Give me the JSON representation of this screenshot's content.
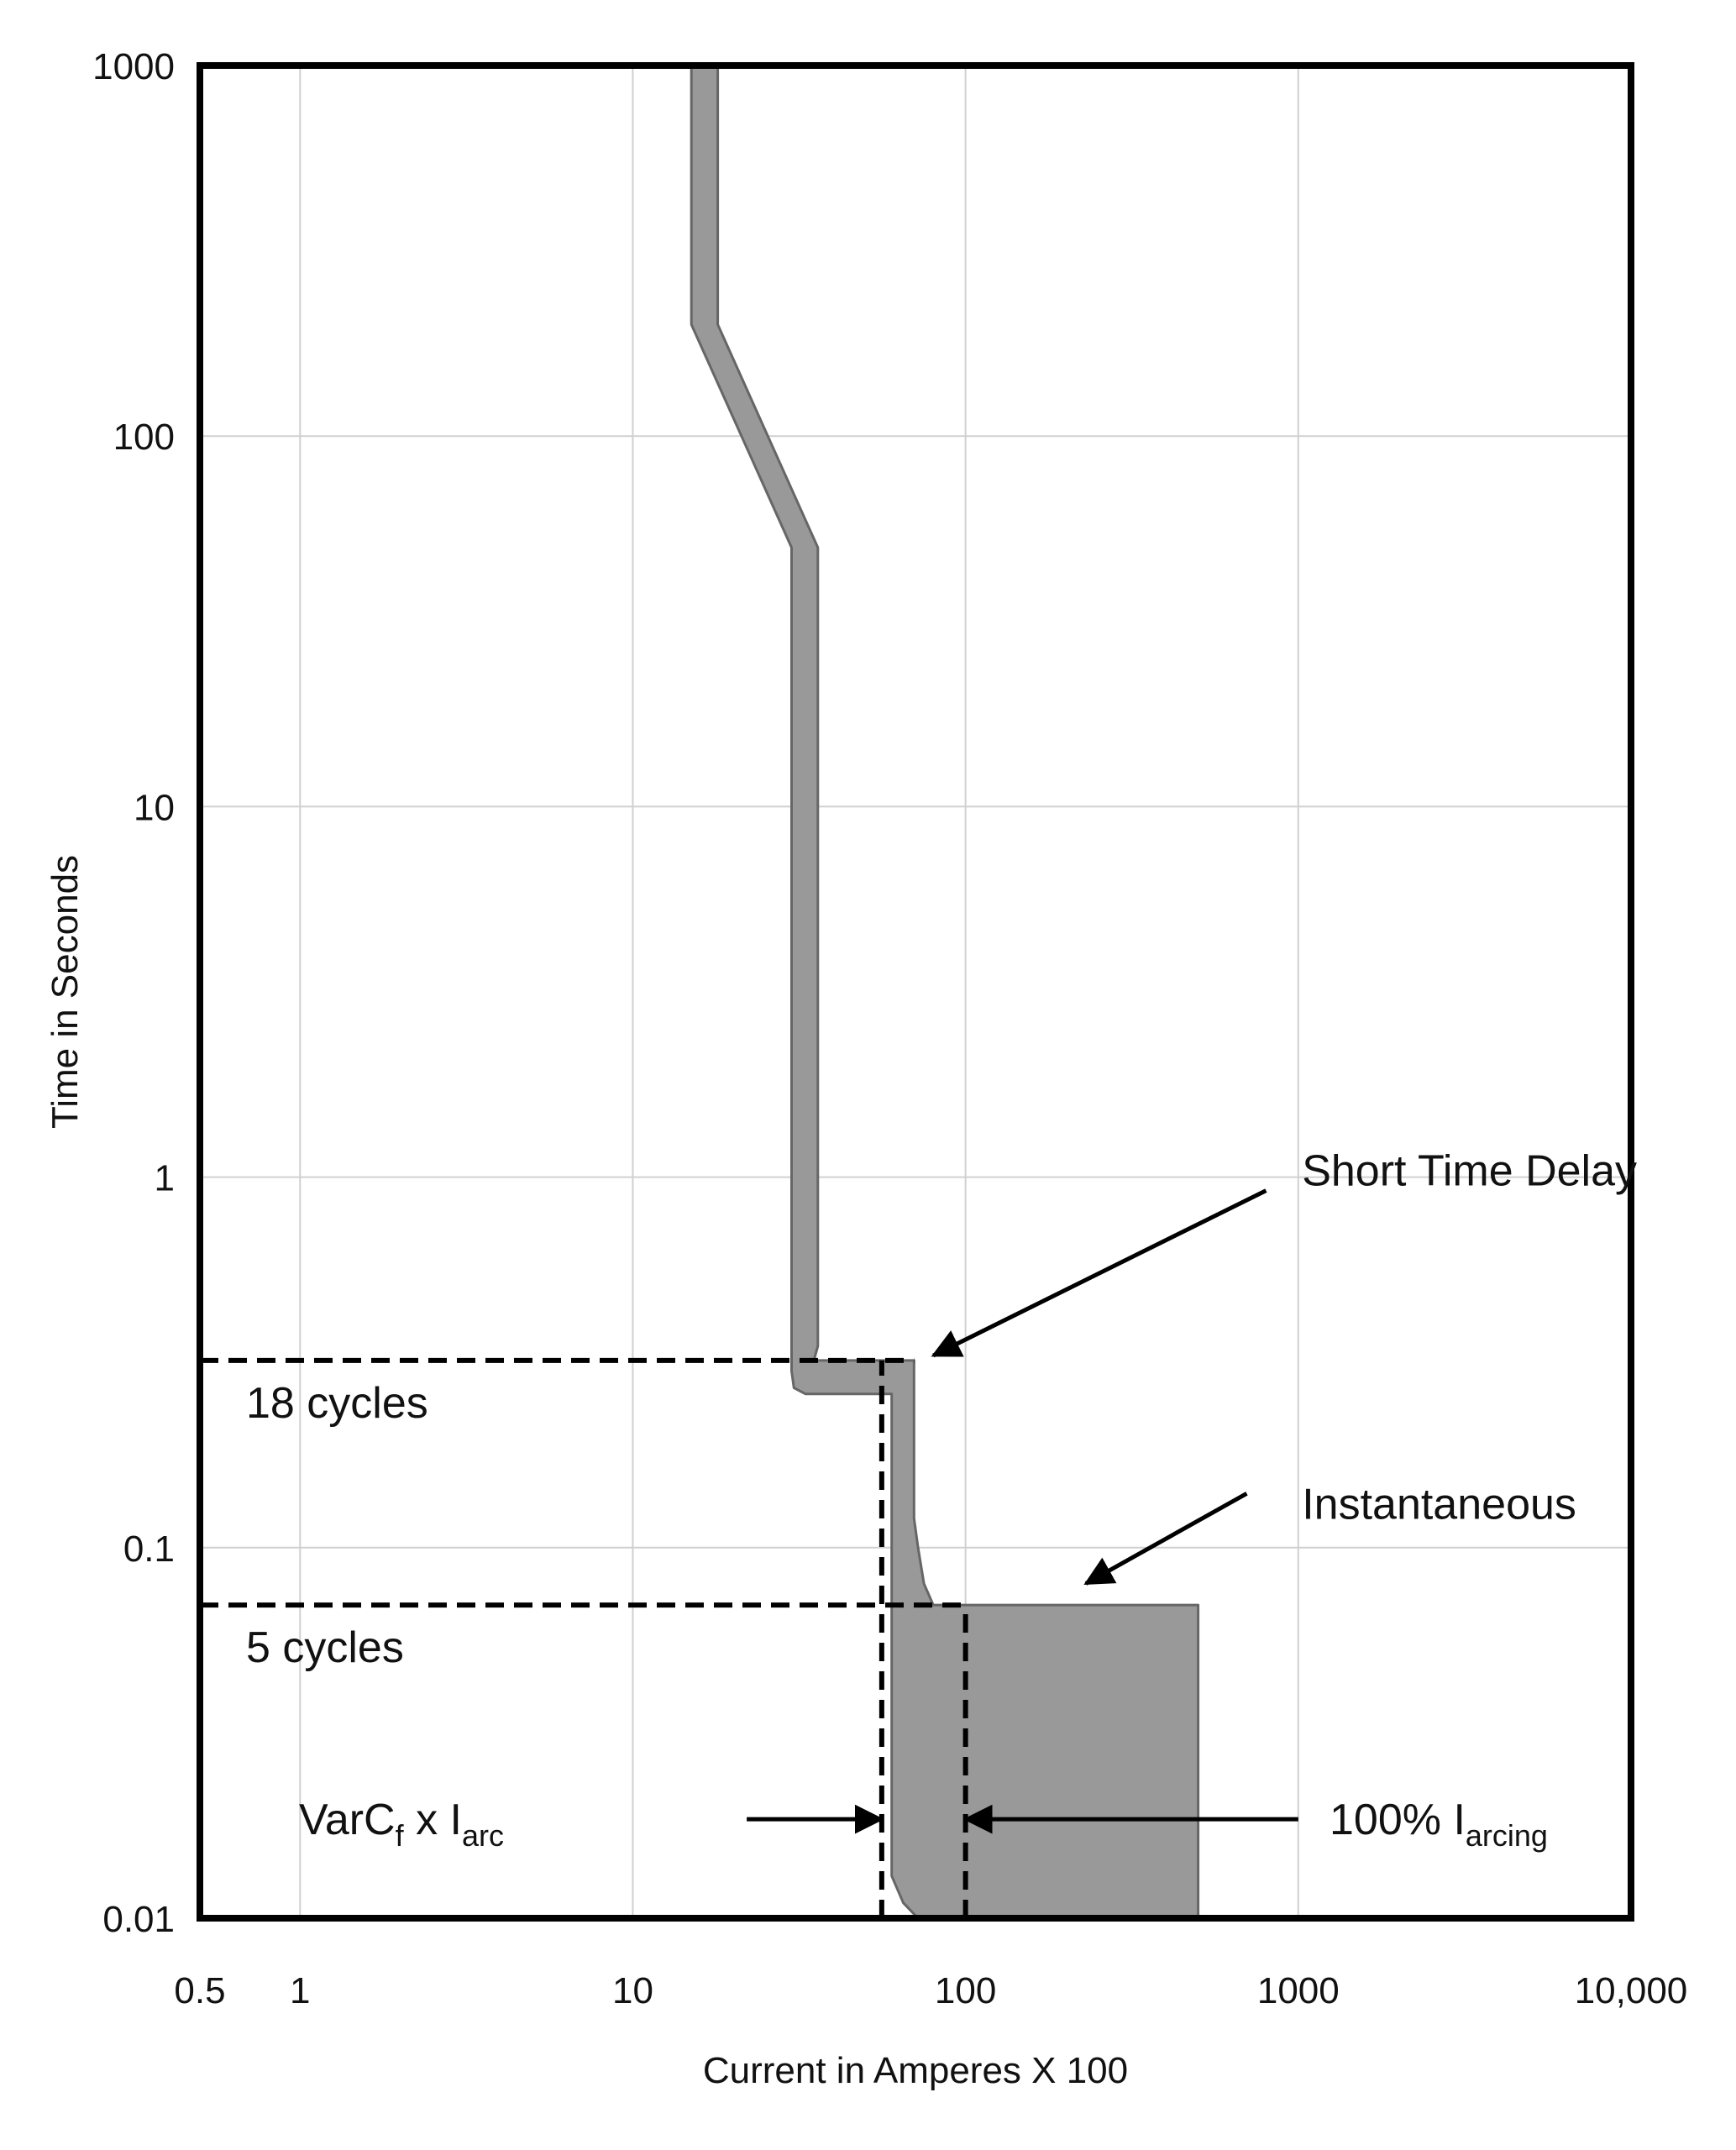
{
  "chart_data": {
    "type": "line",
    "xlabel": "Current in Amperes X 100",
    "ylabel": "Time in Seconds",
    "x_scale": "log",
    "y_scale": "log",
    "xlim": [
      0.5,
      10000
    ],
    "ylim": [
      0.01,
      1000
    ],
    "grid": true,
    "x_ticks": [
      {
        "value": 0.5,
        "label": "0.5"
      },
      {
        "value": 1,
        "label": "1"
      },
      {
        "value": 10,
        "label": "10"
      },
      {
        "value": 100,
        "label": "100"
      },
      {
        "value": 1000,
        "label": "1000"
      },
      {
        "value": 10000,
        "label": "10,000"
      }
    ],
    "y_ticks": [
      {
        "value": 1000,
        "label": "1000"
      },
      {
        "value": 100,
        "label": "100"
      },
      {
        "value": 10,
        "label": "10"
      },
      {
        "value": 1,
        "label": "1"
      },
      {
        "value": 0.1,
        "label": "0.1"
      },
      {
        "value": 0.01,
        "label": "0.01"
      }
    ],
    "band": {
      "fill": "#999999",
      "stroke": "#666666",
      "left_edge": [
        [
          15,
          1000
        ],
        [
          15,
          200
        ],
        [
          30,
          50
        ],
        [
          30,
          0.3
        ],
        [
          30.5,
          0.27
        ],
        [
          33,
          0.26
        ],
        [
          60,
          0.26
        ],
        [
          60,
          0.013
        ],
        [
          65,
          0.011
        ],
        [
          72,
          0.01
        ]
      ],
      "right_edge": [
        [
          500,
          0.01
        ],
        [
          500,
          0.07
        ],
        [
          80,
          0.07
        ],
        [
          75,
          0.08
        ],
        [
          72,
          0.1
        ],
        [
          70,
          0.12
        ],
        [
          70,
          0.32
        ],
        [
          35,
          0.32
        ],
        [
          36,
          0.35
        ],
        [
          36,
          50
        ],
        [
          18,
          200
        ],
        [
          18,
          1000
        ]
      ]
    },
    "reference_lines": [
      {
        "orientation": "horizontal",
        "y": 0.32,
        "x_from": 0.5,
        "x_to": 70,
        "style": "dashed",
        "label": "18 cycles"
      },
      {
        "orientation": "horizontal",
        "y": 0.07,
        "x_from": 0.5,
        "x_to": 100,
        "style": "dashed",
        "label": "5 cycles"
      },
      {
        "orientation": "vertical",
        "x": 56,
        "y_from": 0.01,
        "y_to": 0.32,
        "style": "dashed"
      },
      {
        "orientation": "vertical",
        "x": 100,
        "y_from": 0.01,
        "y_to": 0.07,
        "style": "dashed"
      }
    ],
    "annotations": [
      {
        "label": "Short Time Delay",
        "text_at": [
          1100,
          1
        ],
        "arrow_from": [
          800,
          0.92
        ],
        "arrow_to": [
          80,
          0.33
        ]
      },
      {
        "label": "Instantaneous",
        "text_at": [
          1100,
          0.13
        ],
        "arrow_from": [
          700,
          0.14
        ],
        "arrow_to": [
          230,
          0.08
        ]
      },
      {
        "label_main": "VarC",
        "label_sub1": "f",
        "label_mid": " x I",
        "label_sub2": "arc",
        "arrow_from": [
          22,
          0.0185
        ],
        "arrow_to": [
          56,
          0.0185
        ]
      },
      {
        "label_main": "100% I",
        "label_sub": "arcing",
        "arrow_from": [
          1000,
          0.0185
        ],
        "arrow_to": [
          100,
          0.0185
        ]
      }
    ]
  }
}
